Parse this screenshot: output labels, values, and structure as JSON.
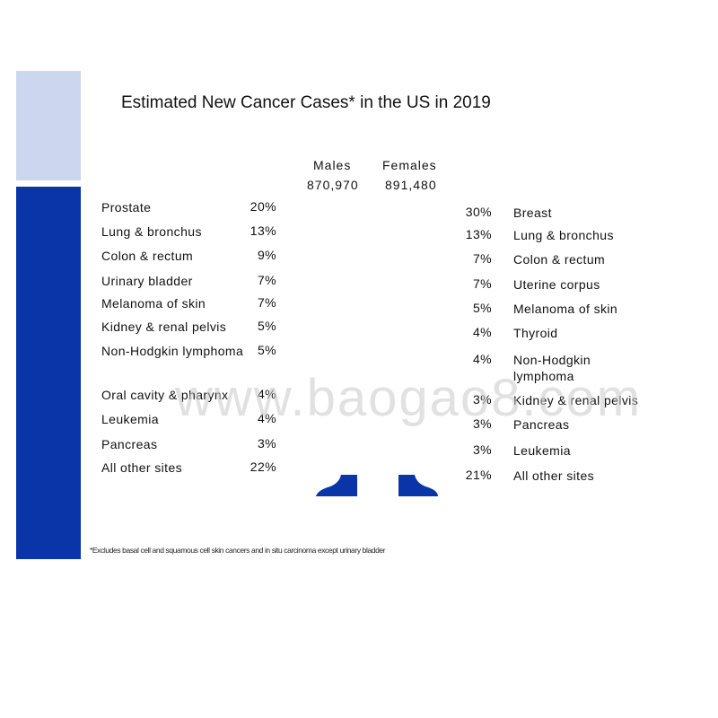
{
  "title": "Estimated New Cancer Cases* in the US in 2019",
  "males": {
    "heading": "Males",
    "total": "870,970",
    "rows": [
      {
        "label": "Prostate",
        "percent": "20%"
      },
      {
        "label": "Lung & bronchus",
        "percent": "13%"
      },
      {
        "label": "Colon & rectum",
        "percent": "9%"
      },
      {
        "label": "Urinary bladder",
        "percent": "7%"
      },
      {
        "label": "Melanoma of skin",
        "percent": "7%"
      },
      {
        "label": "Kidney & renal pelvis",
        "percent": "5%"
      },
      {
        "label": "Non-Hodgkin lymphoma",
        "percent": "5%"
      },
      {
        "label": "Oral cavity & pharynx",
        "percent": "4%"
      },
      {
        "label": "Leukemia",
        "percent": "4%"
      },
      {
        "label": "Pancreas",
        "percent": "3%"
      },
      {
        "label": "All other sites",
        "percent": "22%"
      }
    ]
  },
  "females": {
    "heading": "Females",
    "total": "891,480",
    "rows": [
      {
        "label": "Breast",
        "percent": "30%"
      },
      {
        "label": "Lung & bronchus",
        "percent": "13%"
      },
      {
        "label": "Colon & rectum",
        "percent": "7%"
      },
      {
        "label": "Uterine corpus",
        "percent": "7%"
      },
      {
        "label": "Melanoma of skin",
        "percent": "5%"
      },
      {
        "label": "Thyroid",
        "percent": "4%"
      },
      {
        "label": "Non-Hodgkin lymphoma",
        "percent": "4%"
      },
      {
        "label": "Kidney & renal pelvis",
        "percent": "3%"
      },
      {
        "label": "Pancreas",
        "percent": "3%"
      },
      {
        "label": "Leukemia",
        "percent": "3%"
      },
      {
        "label": "All other sites",
        "percent": "21%"
      }
    ]
  },
  "footnote": "*Excludes basal cell and squamous cell skin cancers and in situ carcinoma except urinary bladder",
  "watermark": "www.baogao8.com"
}
